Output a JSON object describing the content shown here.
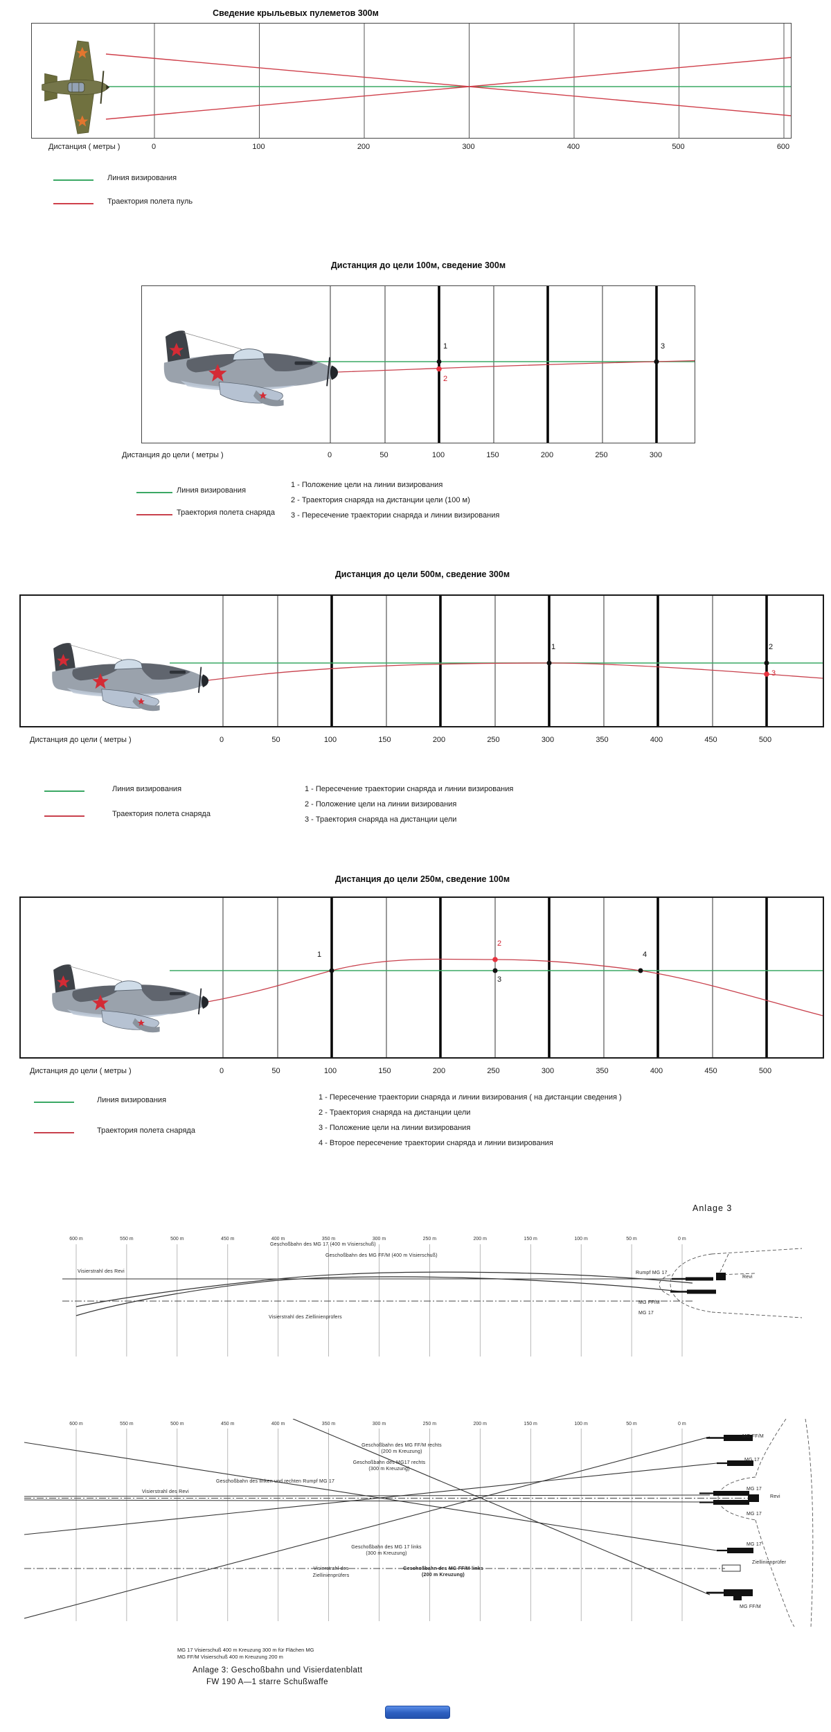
{
  "colors": {
    "sight_line": "#3aa864",
    "trajectory": "#c8404c",
    "grid": "#000000",
    "badge_blue": "#2d5fc0"
  },
  "panel1": {
    "title": "Сведение крыльевых пулеметов 300м",
    "axis_label": "Дистанция ( метры )",
    "ticks": [
      "0",
      "100",
      "200",
      "300",
      "400",
      "500",
      "600"
    ],
    "legend_sight": "Линия визирования",
    "legend_traj": "Траектория полета пуль"
  },
  "panel2": {
    "title": "Дистанция до цели 100м, сведение 300м",
    "axis_label": "Дистанция до цели ( метры )",
    "ticks": [
      "0",
      "50",
      "100",
      "150",
      "200",
      "250",
      "300"
    ],
    "legend_sight": "Линия визирования",
    "legend_traj": "Траектория полета снаряда",
    "markers": {
      "m1": "1",
      "m2": "2",
      "m3": "3"
    },
    "notes": [
      "1 - Положение цели на линии визирования",
      "2 - Траектория снаряда на дистанции цели  (100 м)",
      "3 - Пересечение траектории снаряда и линии визирования"
    ]
  },
  "panel3": {
    "title": "Дистанция до цели 500м, сведение 300м",
    "axis_label": "Дистанция до цели ( метры )",
    "ticks": [
      "0",
      "50",
      "100",
      "150",
      "200",
      "250",
      "300",
      "350",
      "400",
      "450",
      "500"
    ],
    "legend_sight": "Линия визирования",
    "legend_traj": "Траектория полета снаряда",
    "markers": {
      "m1": "1",
      "m2": "2",
      "m3": "3"
    },
    "notes": [
      "1 - Пересечение траектории снаряда и линии визирования",
      "2 - Положение цели на линии визирования",
      "3 - Траектория снаряда на дистанции цели"
    ]
  },
  "panel4": {
    "title": "Дистанция до цели 250м, сведение 100м",
    "axis_label": "Дистанция до цели ( метры )",
    "ticks": [
      "0",
      "50",
      "100",
      "150",
      "200",
      "250",
      "300",
      "350",
      "400",
      "450",
      "500"
    ],
    "legend_sight": "Линия визирования",
    "legend_traj": "Траектория полета снаряда",
    "markers": {
      "m1": "1",
      "m2": "2",
      "m3": "3",
      "m4": "4"
    },
    "notes": [
      "1 - Пересечение траектории снаряда и линии визирования ( на дистанции сведения )",
      "2 - Траектория снаряда на дистанции цели",
      "3 - Положение цели на линии визирования",
      "4 - Второе пересечение траектории снаряда и линии визирования"
    ]
  },
  "german": {
    "anlage": "Anlage 3",
    "scale_ticks": [
      "600 m",
      "550 m",
      "500 m",
      "450 m",
      "400 m",
      "350 m",
      "300 m",
      "250 m",
      "200 m",
      "150 m",
      "100 m",
      "50 m",
      "0 m"
    ],
    "top": {
      "visierstrahl_revi": "Visierstrahl des Revi",
      "traj_mg17": "Geschoßbahn des MG 17 (400 m Visierschuß)",
      "traj_mgffm": "Geschoßbahn des MG FF/M (400 m Visierschuß)",
      "visierstrahl_pruefer": "Visierstrahl des Ziellinienprüfers",
      "rumpf_mg17": "Rumpf MG 17",
      "revi": "Revi",
      "mgffm": "MG FF/M",
      "mg17": "MG 17"
    },
    "bottom": {
      "visierstrahl_revi": "Visierstrahl des Revi",
      "rumpf_beide": "Geschoßbahn des linken und rechten Rumpf MG 17",
      "ffm_rechts_1": "Geschoßbahn des MG FF/M rechts",
      "ffm_rechts_2": "(200 m Kreuzung)",
      "mg17_rechts_1": "Geschoßbahn des MG17 rechts",
      "mg17_rechts_2": "(300 m Kreuzung)",
      "mg17_links_1": "Geschoßbahn des MG 17 links",
      "mg17_links_2": "(300 m Kreuzung)",
      "vis_pruefer_1": "Visierstrahl des",
      "vis_pruefer_2": "Ziellinienprüfers",
      "ffm_links_1": "Geschoßbahn des MG FF/M links",
      "ffm_links_2": "(200 m Kreuzung)",
      "gun_ffm_top": "MG FF/M",
      "gun_mg17_wing_top": "MG 17",
      "gun_mg17_fus_top": "MG 17",
      "revi": "Revi",
      "gun_mg17_fus_bot": "MG 17",
      "gun_mg17_wing_bot": "MG 17",
      "pruefer": "Ziellinienprüfer",
      "gun_ffm_bot": "MG FF/M"
    },
    "caption": {
      "line1": "MG 17 Visierschuß 400 m Kreuzung 300 m für Flächen MG",
      "line2": "MG FF/M Visierschuß 400 m Kreuzung 200 m",
      "line3": "Anlage 3:  Geschoßbahn und Visierdatenblatt",
      "line4": "FW 190 A—1 starre Schußwaffe"
    }
  },
  "chart_data": [
    {
      "type": "line",
      "title": "Сведение крыльевых пулеметов 300м",
      "xlabel": "Дистанция ( метры )",
      "x_ticks": [
        0,
        100,
        200,
        300,
        400,
        500,
        600
      ],
      "series": [
        {
          "name": "Линия визирования"
        },
        {
          "name": "Траектория полета пуль",
          "convergence_m": 300
        }
      ]
    },
    {
      "type": "line",
      "title": "Дистанция до цели 100м, сведение 300м",
      "xlabel": "Дистанция до цели ( метры )",
      "x_ticks": [
        0,
        50,
        100,
        150,
        200,
        250,
        300
      ],
      "events": {
        "target_distance_m": 100,
        "sight_crossing_m": 300
      }
    },
    {
      "type": "line",
      "title": "Дистанция до цели 500м, сведение 300м",
      "xlabel": "Дистанция до цели ( метры )",
      "x_ticks": [
        0,
        50,
        100,
        150,
        200,
        250,
        300,
        350,
        400,
        450,
        500
      ],
      "events": {
        "sight_crossing_m": 300,
        "target_distance_m": 500
      }
    },
    {
      "type": "line",
      "title": "Дистанция до цели 250м, сведение 100м",
      "xlabel": "Дистанция до цели ( метры )",
      "x_ticks": [
        0,
        50,
        100,
        150,
        200,
        250,
        300,
        350,
        400,
        450,
        500
      ],
      "events": {
        "first_crossing_m": 100,
        "target_distance_m": 250,
        "second_crossing_m": 385
      }
    }
  ]
}
